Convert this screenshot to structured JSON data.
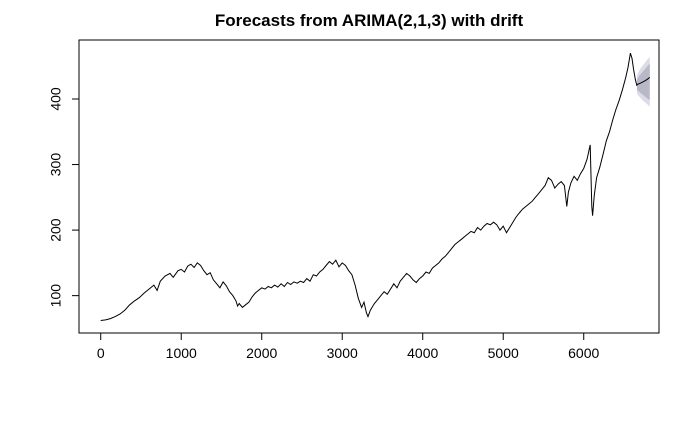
{
  "chart_data": {
    "type": "line",
    "title": "Forecasts from ARIMA(2,1,3) with drift",
    "xlabel": "",
    "ylabel": "",
    "xlim": [
      -270,
      6935
    ],
    "ylim": [
      43,
      490
    ],
    "grid": false,
    "legend": "none",
    "x_ticks": [
      0,
      1000,
      2000,
      3000,
      4000,
      5000,
      6000
    ],
    "y_ticks": [
      100,
      200,
      300,
      400
    ],
    "colors": {
      "series": "#000000",
      "forecast": "#2f8fe0",
      "band_80": "#b8b8c8",
      "band_95": "#dcdce6"
    },
    "series": [
      {
        "role": "observed",
        "points": [
          [
            0,
            62
          ],
          [
            60,
            63
          ],
          [
            120,
            65
          ],
          [
            180,
            68
          ],
          [
            240,
            72
          ],
          [
            300,
            78
          ],
          [
            360,
            86
          ],
          [
            420,
            92
          ],
          [
            480,
            97
          ],
          [
            540,
            104
          ],
          [
            600,
            110
          ],
          [
            660,
            116
          ],
          [
            700,
            108
          ],
          [
            740,
            122
          ],
          [
            800,
            130
          ],
          [
            860,
            134
          ],
          [
            900,
            128
          ],
          [
            960,
            138
          ],
          [
            1000,
            140
          ],
          [
            1040,
            136
          ],
          [
            1080,
            145
          ],
          [
            1120,
            148
          ],
          [
            1160,
            143
          ],
          [
            1200,
            150
          ],
          [
            1240,
            146
          ],
          [
            1280,
            138
          ],
          [
            1320,
            132
          ],
          [
            1360,
            135
          ],
          [
            1400,
            124
          ],
          [
            1440,
            118
          ],
          [
            1480,
            112
          ],
          [
            1520,
            121
          ],
          [
            1560,
            115
          ],
          [
            1600,
            106
          ],
          [
            1640,
            100
          ],
          [
            1680,
            92
          ],
          [
            1700,
            84
          ],
          [
            1720,
            88
          ],
          [
            1760,
            82
          ],
          [
            1800,
            86
          ],
          [
            1840,
            90
          ],
          [
            1880,
            98
          ],
          [
            1920,
            104
          ],
          [
            1960,
            108
          ],
          [
            2000,
            112
          ],
          [
            2040,
            110
          ],
          [
            2080,
            114
          ],
          [
            2120,
            112
          ],
          [
            2160,
            116
          ],
          [
            2200,
            113
          ],
          [
            2240,
            118
          ],
          [
            2280,
            114
          ],
          [
            2320,
            120
          ],
          [
            2360,
            117
          ],
          [
            2400,
            121
          ],
          [
            2440,
            119
          ],
          [
            2480,
            122
          ],
          [
            2520,
            120
          ],
          [
            2560,
            126
          ],
          [
            2600,
            122
          ],
          [
            2640,
            132
          ],
          [
            2680,
            130
          ],
          [
            2720,
            136
          ],
          [
            2760,
            140
          ],
          [
            2800,
            146
          ],
          [
            2840,
            152
          ],
          [
            2880,
            148
          ],
          [
            2920,
            154
          ],
          [
            2960,
            144
          ],
          [
            3000,
            150
          ],
          [
            3040,
            146
          ],
          [
            3080,
            138
          ],
          [
            3120,
            132
          ],
          [
            3160,
            116
          ],
          [
            3200,
            96
          ],
          [
            3240,
            82
          ],
          [
            3270,
            90
          ],
          [
            3300,
            74
          ],
          [
            3320,
            68
          ],
          [
            3350,
            78
          ],
          [
            3400,
            88
          ],
          [
            3440,
            94
          ],
          [
            3480,
            100
          ],
          [
            3520,
            106
          ],
          [
            3560,
            102
          ],
          [
            3600,
            110
          ],
          [
            3640,
            118
          ],
          [
            3680,
            112
          ],
          [
            3720,
            122
          ],
          [
            3760,
            128
          ],
          [
            3800,
            134
          ],
          [
            3840,
            130
          ],
          [
            3880,
            124
          ],
          [
            3920,
            120
          ],
          [
            3960,
            126
          ],
          [
            4000,
            130
          ],
          [
            4040,
            136
          ],
          [
            4080,
            134
          ],
          [
            4120,
            142
          ],
          [
            4160,
            146
          ],
          [
            4200,
            150
          ],
          [
            4240,
            156
          ],
          [
            4280,
            160
          ],
          [
            4320,
            166
          ],
          [
            4360,
            172
          ],
          [
            4400,
            178
          ],
          [
            4440,
            182
          ],
          [
            4480,
            186
          ],
          [
            4520,
            190
          ],
          [
            4560,
            194
          ],
          [
            4600,
            198
          ],
          [
            4640,
            196
          ],
          [
            4680,
            204
          ],
          [
            4720,
            200
          ],
          [
            4760,
            206
          ],
          [
            4800,
            210
          ],
          [
            4840,
            208
          ],
          [
            4880,
            212
          ],
          [
            4920,
            208
          ],
          [
            4960,
            200
          ],
          [
            5000,
            206
          ],
          [
            5040,
            196
          ],
          [
            5080,
            204
          ],
          [
            5120,
            212
          ],
          [
            5160,
            220
          ],
          [
            5200,
            226
          ],
          [
            5240,
            232
          ],
          [
            5280,
            236
          ],
          [
            5320,
            240
          ],
          [
            5360,
            244
          ],
          [
            5400,
            250
          ],
          [
            5440,
            256
          ],
          [
            5480,
            262
          ],
          [
            5520,
            268
          ],
          [
            5560,
            280
          ],
          [
            5600,
            276
          ],
          [
            5640,
            264
          ],
          [
            5680,
            270
          ],
          [
            5720,
            274
          ],
          [
            5760,
            268
          ],
          [
            5790,
            236
          ],
          [
            5810,
            258
          ],
          [
            5840,
            272
          ],
          [
            5880,
            282
          ],
          [
            5920,
            276
          ],
          [
            5960,
            286
          ],
          [
            6000,
            294
          ],
          [
            6040,
            308
          ],
          [
            6080,
            330
          ],
          [
            6100,
            236
          ],
          [
            6110,
            222
          ],
          [
            6130,
            252
          ],
          [
            6160,
            280
          ],
          [
            6200,
            296
          ],
          [
            6240,
            316
          ],
          [
            6280,
            336
          ],
          [
            6320,
            350
          ],
          [
            6360,
            368
          ],
          [
            6400,
            384
          ],
          [
            6440,
            398
          ],
          [
            6480,
            414
          ],
          [
            6520,
            432
          ],
          [
            6550,
            448
          ],
          [
            6580,
            470
          ],
          [
            6600,
            462
          ],
          [
            6620,
            445
          ],
          [
            6640,
            430
          ],
          [
            6660,
            420
          ]
        ]
      },
      {
        "role": "forecast",
        "points": [
          [
            6661,
            422
          ],
          [
            6700,
            424
          ],
          [
            6750,
            427
          ],
          [
            6790,
            430
          ],
          [
            6820,
            433
          ]
        ]
      }
    ],
    "intervals": {
      "x": [
        6661,
        6700,
        6750,
        6790,
        6820
      ],
      "lower_95": [
        408,
        402,
        396,
        392,
        388
      ],
      "upper_95": [
        436,
        446,
        454,
        460,
        464
      ],
      "lower_80": [
        414,
        410,
        405,
        401,
        398
      ],
      "upper_80": [
        430,
        437,
        444,
        450,
        454
      ]
    }
  }
}
